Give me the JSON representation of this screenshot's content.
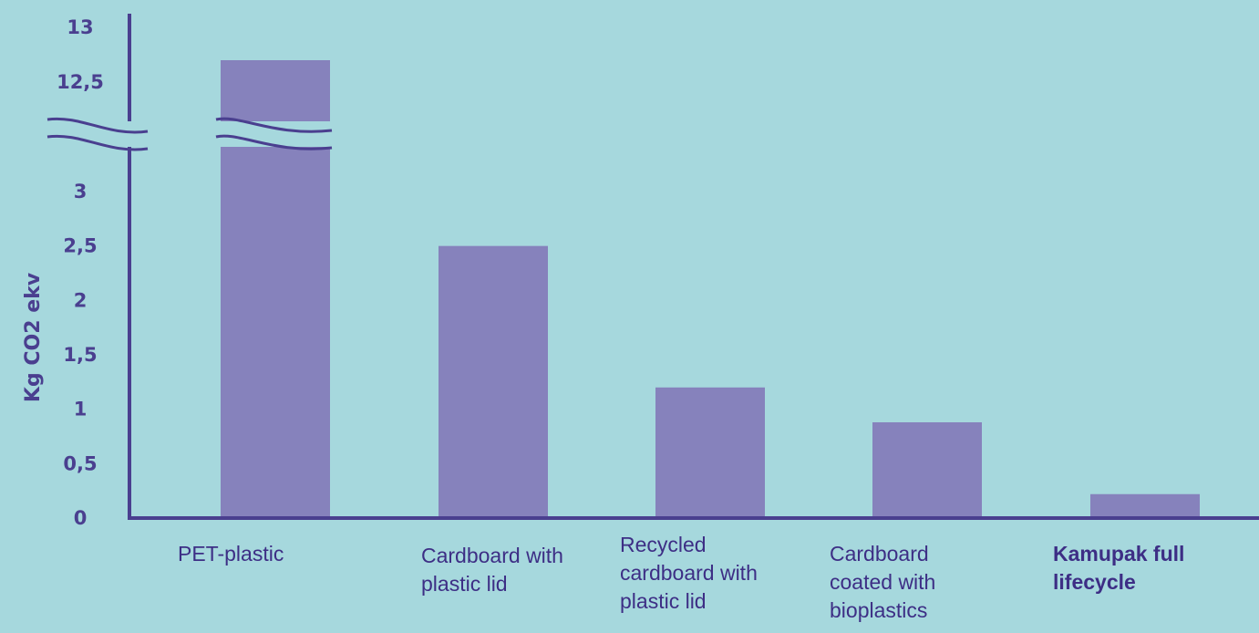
{
  "chart_data": {
    "type": "bar",
    "ylabel": "Kg CO2 ekv",
    "y_axis_break": [
      3,
      12.5
    ],
    "ytick_labels_lower": [
      "0",
      "0,5",
      "1",
      "1,5",
      "2",
      "2,5",
      "3"
    ],
    "ytick_labels_upper": [
      "12,5",
      "13"
    ],
    "categories": [
      "PET-plastic",
      "Cardboard with plastic lid",
      "Recycled cardboard with plastic lid",
      "Cardboard coated with bioplastics",
      "Kamupak full lifecycle"
    ],
    "category_display": [
      "PET-plastic",
      "Cardboard with\nplastic lid",
      "Recycled\ncardboard with\nplastic lid",
      "Cardboard\ncoated with\nbioplastics",
      "Kamupak full\nlifecycle"
    ],
    "highlighted_category": "Kamupak full lifecycle",
    "values": [
      12.7,
      2.5,
      1.2,
      0.88,
      0.22
    ],
    "colors": {
      "bar": "#8682bc",
      "axis": "#4a3f8f",
      "text": "#3d2e85",
      "background": "#a6d8dd"
    }
  }
}
